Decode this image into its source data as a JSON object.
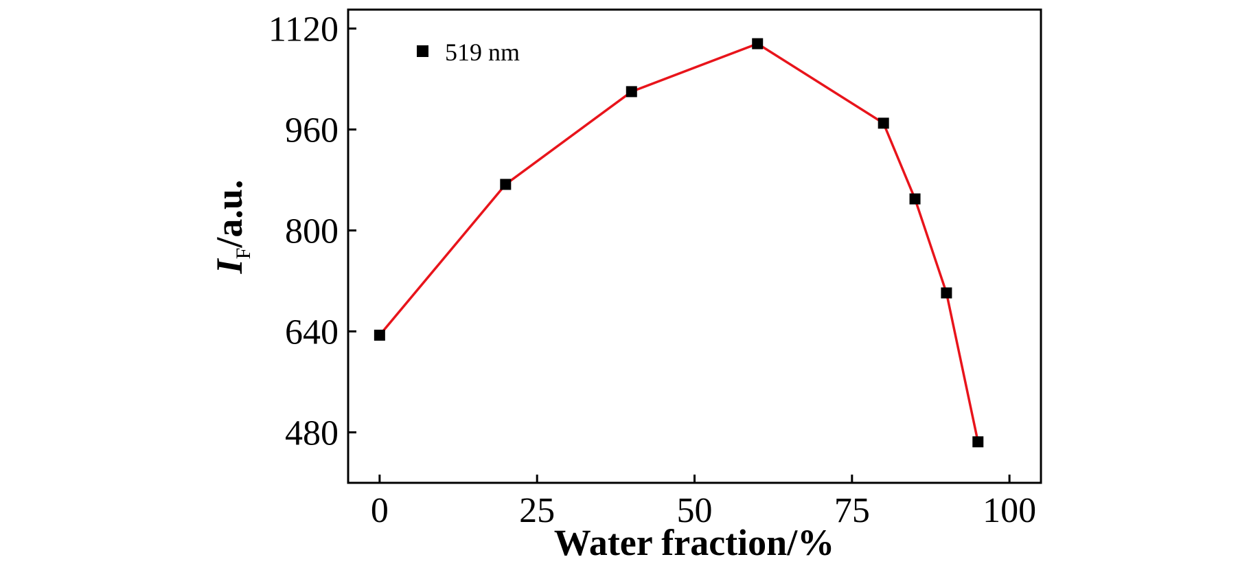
{
  "chart_data": {
    "type": "line",
    "title": "",
    "xlabel": "Water fraction/%",
    "ylabel_main": "I",
    "ylabel_sub": "F",
    "ylabel_unit": "/a.u.",
    "xlim": [
      -5,
      105
    ],
    "ylim": [
      400,
      1150
    ],
    "x_ticks": [
      0,
      25,
      50,
      75,
      100
    ],
    "y_ticks": [
      480,
      640,
      800,
      960,
      1120
    ],
    "x_tick_labels": [
      "0",
      "25",
      "50",
      "75",
      "100"
    ],
    "y_tick_labels": [
      "480",
      "640",
      "800",
      "960",
      "1120"
    ],
    "grid": false,
    "legend_position": "top-left",
    "series": [
      {
        "name": "519 nm",
        "x": [
          0,
          20,
          40,
          60,
          80,
          85,
          90,
          95
        ],
        "y": [
          634,
          873,
          1020,
          1096,
          970,
          850,
          701,
          465
        ],
        "line_color": "#e8141b",
        "marker": "square",
        "marker_color": "#000000"
      }
    ]
  }
}
